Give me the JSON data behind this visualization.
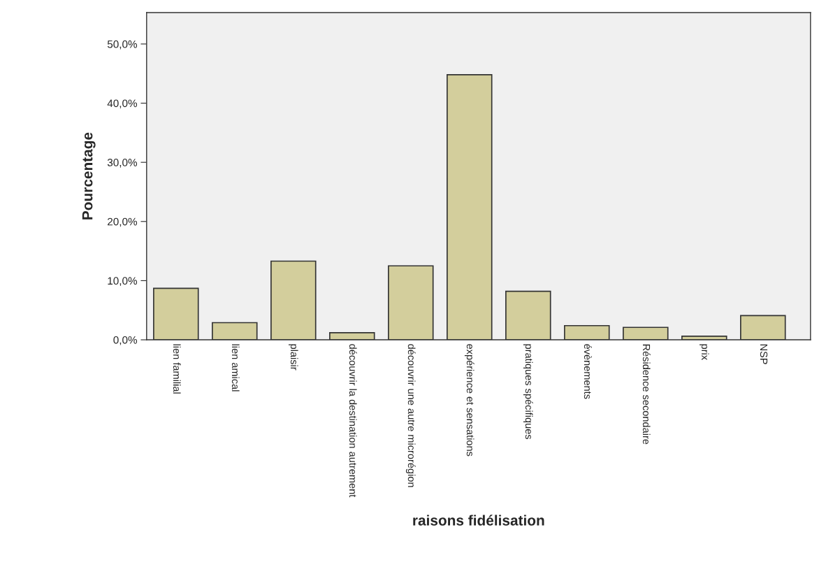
{
  "chart_data": {
    "type": "bar",
    "xlabel": "raisons fidélisation",
    "ylabel": "Pourcentage",
    "categories": [
      "lien familial",
      "lien amical",
      "plaisir",
      "découvrir la destination autrement",
      "découvrir une autre microrégion",
      "expérience et sensations",
      "pratiques spécifiques",
      "évènements",
      "Résidence secondaire",
      "prix",
      "NSP"
    ],
    "values": [
      8.7,
      2.9,
      13.3,
      1.2,
      12.5,
      44.8,
      8.2,
      2.4,
      2.1,
      0.6,
      4.1
    ],
    "color": "#d3ce9c",
    "ylim": [
      0,
      55.3
    ],
    "yticks": [
      {
        "value": 0,
        "label": "0,0%"
      },
      {
        "value": 10,
        "label": "10,0%"
      },
      {
        "value": 20,
        "label": "20,0%"
      },
      {
        "value": 30,
        "label": "30,0%"
      },
      {
        "value": 40,
        "label": "40,0%"
      },
      {
        "value": 50,
        "label": "50,0%"
      }
    ],
    "grid": false,
    "legend": false
  }
}
